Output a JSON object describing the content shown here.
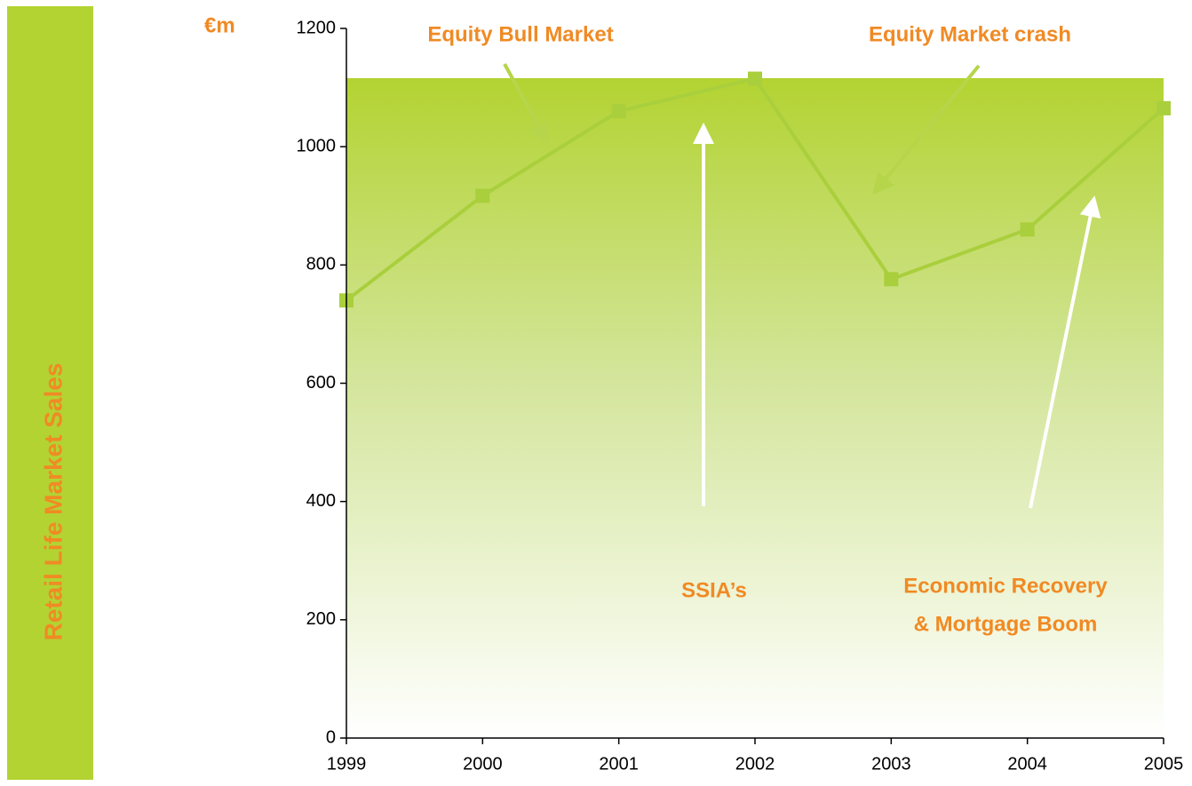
{
  "chart_data": {
    "type": "line",
    "side_label": "Retail Life Market Sales",
    "unit_label": "€m",
    "annotations": [
      "Equity Bull Market",
      "Equity Market crash",
      "SSIA’s",
      "Economic Recovery",
      "& Mortgage Boom"
    ],
    "x": [
      1999,
      2000,
      2001,
      2002,
      2003,
      2004,
      2005
    ],
    "series": [
      {
        "name": "Retail Life Market Sales",
        "color": "#a9cf3c",
        "values": [
          740,
          917,
          1060,
          1115,
          776,
          860,
          1065
        ]
      }
    ],
    "xlim": [
      1999,
      2005
    ],
    "xticks": [
      1999,
      2000,
      2001,
      2002,
      2003,
      2004,
      2005
    ],
    "ylim": [
      0,
      1200
    ],
    "yticks": [
      0,
      200,
      400,
      600,
      800,
      1000,
      1200
    ]
  }
}
